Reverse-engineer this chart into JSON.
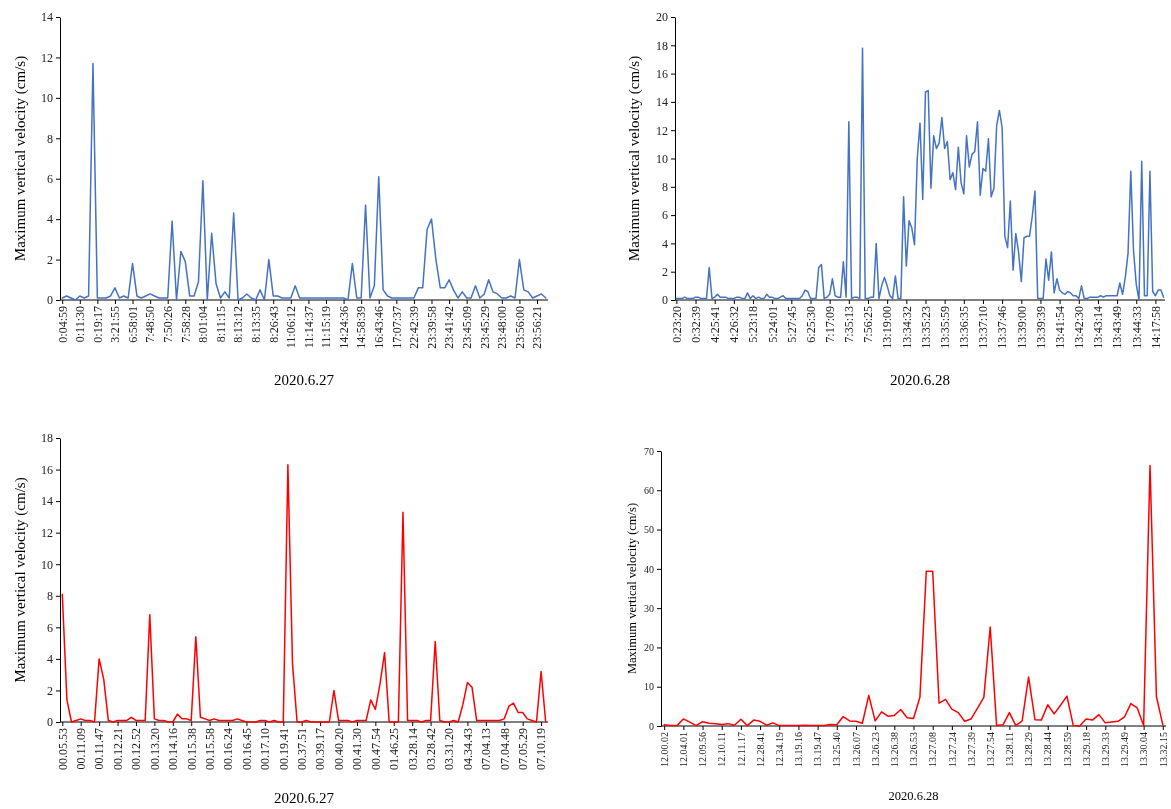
{
  "chart_data": [
    {
      "type": "line",
      "xlabel": "2020.6.27",
      "ylabel": "Maximum vertical velocity (cm/s)",
      "ylim": [
        0,
        14
      ],
      "yticks": [
        0,
        2,
        4,
        6,
        8,
        10,
        12,
        14
      ],
      "categories": [
        "0:04:59",
        null,
        null,
        null,
        "0:11:30",
        null,
        null,
        null,
        "0:19:17",
        null,
        null,
        null,
        "3:21:55",
        null,
        null,
        null,
        "6:58:01",
        null,
        null,
        null,
        "7:48:50",
        null,
        null,
        null,
        "7:50:26",
        null,
        null,
        null,
        "7:58:28",
        null,
        null,
        null,
        "8:01:04",
        null,
        null,
        null,
        "8:11:15",
        null,
        null,
        null,
        "8:13:12",
        null,
        null,
        null,
        "8:13:35",
        null,
        null,
        null,
        "8:26:43",
        null,
        null,
        null,
        "11:06:12",
        null,
        null,
        null,
        "11:14:37",
        null,
        null,
        null,
        "11:15:19",
        null,
        null,
        null,
        "14:24:36",
        null,
        null,
        null,
        "14:58:39",
        null,
        null,
        null,
        "16:43:46",
        null,
        null,
        null,
        "17:07:37",
        null,
        null,
        null,
        "22:42:39",
        null,
        null,
        null,
        "23:39:58",
        null,
        null,
        null,
        "23:41:42",
        null,
        null,
        null,
        "23:45:09",
        null,
        null,
        null,
        "23:45:29",
        null,
        null,
        null,
        "23:48:00",
        null,
        null,
        null,
        "23:56:00",
        null,
        null,
        null,
        "23:56:21",
        null,
        null
      ],
      "series": [
        {
          "color": "#4472c4",
          "values": [
            0.1,
            0.2,
            0.1,
            0,
            0.2,
            0.1,
            0.2,
            11.7,
            0.1,
            0.1,
            0.1,
            0.2,
            0.6,
            0.1,
            0.2,
            0.1,
            1.8,
            0.2,
            0.1,
            0.2,
            0.3,
            0.2,
            0.1,
            0.1,
            0.1,
            3.9,
            0,
            2.4,
            1.9,
            0.2,
            0.2,
            0.9,
            5.9,
            0,
            3.3,
            0.8,
            0.1,
            0.4,
            0.1,
            4.3,
            0,
            0.1,
            0.3,
            0.1,
            0,
            0.5,
            0,
            2,
            0.2,
            0.2,
            0.1,
            0.1,
            0.1,
            0.7,
            0.1,
            0.1,
            0.1,
            0.1,
            0.1,
            0.1,
            0.1,
            0.1,
            0.1,
            0.1,
            0.1,
            0,
            1.8,
            0.1,
            0.1,
            4.7,
            0.1,
            0.7,
            6.1,
            0.5,
            0.2,
            0.1,
            0.1,
            0.1,
            0.1,
            0.1,
            0.1,
            0.6,
            0.6,
            3.5,
            4,
            2,
            0.6,
            0.6,
            1,
            0.5,
            0.1,
            0.4,
            0.1,
            0.1,
            0.7,
            0.1,
            0.3,
            1,
            0.4,
            0.3,
            0.1,
            0.1,
            0.2,
            0.1,
            2,
            0.5,
            0.4,
            0.1,
            0.2,
            0.3,
            0.1
          ]
        }
      ]
    },
    {
      "type": "line",
      "xlabel": "2020.6.28",
      "ylabel": "Maximum vertical velocity (cm/s)",
      "ylim": [
        0,
        20
      ],
      "yticks": [
        0,
        2,
        4,
        6,
        8,
        10,
        12,
        14,
        16,
        18,
        20
      ],
      "categories": [
        "0:23:20",
        null,
        null,
        null,
        null,
        null,
        null,
        "0:32:39",
        null,
        null,
        null,
        null,
        null,
        null,
        "4:25:41",
        null,
        null,
        null,
        null,
        null,
        null,
        "4:26:32",
        null,
        null,
        null,
        null,
        null,
        null,
        "5:23:18",
        null,
        null,
        null,
        null,
        null,
        null,
        "5:24:01",
        null,
        null,
        null,
        null,
        null,
        null,
        "5:27:45",
        null,
        null,
        null,
        null,
        null,
        null,
        "6:25:30",
        null,
        null,
        null,
        null,
        null,
        null,
        "7:17:09",
        null,
        null,
        null,
        null,
        null,
        null,
        "7:35:13",
        null,
        null,
        null,
        null,
        null,
        null,
        "7:56:25",
        null,
        null,
        null,
        null,
        null,
        null,
        "13:19:00",
        null,
        null,
        null,
        null,
        null,
        null,
        "13:34:32",
        null,
        null,
        null,
        null,
        null,
        null,
        "13:35:23",
        null,
        null,
        null,
        null,
        null,
        null,
        "13:35:59",
        null,
        null,
        null,
        null,
        null,
        null,
        "13:36:35",
        null,
        null,
        null,
        null,
        null,
        null,
        "13:37:10",
        null,
        null,
        null,
        null,
        null,
        null,
        "13:37:46",
        null,
        null,
        null,
        null,
        null,
        null,
        "13:39:00",
        null,
        null,
        null,
        null,
        null,
        null,
        "13:39:39",
        null,
        null,
        null,
        null,
        null,
        null,
        "13:41:54",
        null,
        null,
        null,
        null,
        null,
        null,
        "13:42:30",
        null,
        null,
        null,
        null,
        null,
        null,
        "13:43:14",
        null,
        null,
        null,
        null,
        null,
        null,
        "13:43:49",
        null,
        null,
        null,
        null,
        null,
        null,
        "13:44:33",
        null,
        null,
        null,
        null,
        null,
        null,
        "14:17:58",
        null,
        null,
        null
      ],
      "series": [
        {
          "color": "#4472c4",
          "values": [
            0.1,
            0.1,
            0.1,
            0.2,
            0.1,
            0.1,
            0.1,
            0.2,
            0.2,
            0.1,
            0.1,
            0.1,
            2.3,
            0.1,
            0.2,
            0.4,
            0.2,
            0.2,
            0.2,
            0.1,
            0.1,
            0.1,
            0.2,
            0.2,
            0.1,
            0.1,
            0.5,
            0.1,
            0.3,
            0.1,
            0.2,
            0.1,
            0.1,
            0.4,
            0.2,
            0.2,
            0.1,
            0.1,
            0.2,
            0.3,
            0.1,
            0.1,
            0.1,
            0.1,
            0.1,
            0.1,
            0.3,
            0.7,
            0.6,
            0.1,
            0.1,
            0.1,
            2.3,
            2.5,
            0.1,
            0.2,
            0.4,
            1.5,
            0.3,
            0.2,
            0.2,
            2.7,
            0.2,
            12.6,
            0.1,
            0.2,
            0.2,
            0.1,
            17.8,
            0.1,
            0.1,
            0.2,
            0.2,
            4,
            0.1,
            1,
            1.6,
            1,
            0.3,
            0.1,
            1.7,
            0.1,
            0.1,
            7.3,
            2.4,
            5.6,
            5.1,
            3.9,
            10,
            12.5,
            7.1,
            14.7,
            14.8,
            7.9,
            11.6,
            10.7,
            11.1,
            12.9,
            10.7,
            11.2,
            8.5,
            9,
            7.8,
            10.8,
            8.3,
            7.5,
            11.6,
            9.4,
            10.3,
            10.5,
            12.6,
            7.4,
            9.3,
            9.1,
            11.4,
            7.3,
            7.9,
            12.3,
            13.4,
            12.2,
            4.5,
            3.7,
            7,
            2.1,
            4.7,
            3.4,
            1.3,
            4.4,
            4.5,
            4.5,
            5.9,
            7.7,
            0.1,
            0.1,
            0.1,
            2.9,
            1.4,
            3.4,
            0.5,
            1.5,
            0.7,
            0.5,
            0.4,
            0.6,
            0.5,
            0.3,
            0.3,
            0.1,
            1,
            0.1,
            0.1,
            0.2,
            0.2,
            0.2,
            0.2,
            0.3,
            0.2,
            0.3,
            0.3,
            0.3,
            0.3,
            0.3,
            1.2,
            0.4,
            1.6,
            3.3,
            9.1,
            3.5,
            1.1,
            0,
            9.8,
            0.3,
            0.3,
            9.1,
            0.6,
            0.3,
            0.7,
            0.7,
            0.2
          ]
        }
      ]
    },
    {
      "type": "line",
      "xlabel": "2020.6.27",
      "ylabel": "Maximum vertical velocity (cm/s)",
      "ylim": [
        0,
        18
      ],
      "yticks": [
        0,
        2,
        4,
        6,
        8,
        10,
        12,
        14,
        16,
        18
      ],
      "categories": [
        "00.05.53",
        null,
        null,
        null,
        "00.11.09",
        null,
        null,
        null,
        "00.11.47",
        null,
        null,
        null,
        "00.12.21",
        null,
        null,
        null,
        "00.12.52",
        null,
        null,
        null,
        "00.13.20",
        null,
        null,
        null,
        "00.14.16",
        null,
        null,
        null,
        "00.15.38",
        null,
        null,
        null,
        "00.15.58",
        null,
        null,
        null,
        "00.16.24",
        null,
        null,
        null,
        "00.16.45",
        null,
        null,
        null,
        "00.17.10",
        null,
        null,
        null,
        "00.19.41",
        null,
        null,
        null,
        "00.37.51",
        null,
        null,
        null,
        "00.39.17",
        null,
        null,
        null,
        "00.40.20",
        null,
        null,
        null,
        "00.41.30",
        null,
        null,
        null,
        "00.47.54",
        null,
        null,
        null,
        "01.46.25",
        null,
        null,
        null,
        "03.28.14",
        null,
        null,
        null,
        "03.28.42",
        null,
        null,
        null,
        "03.31.20",
        null,
        null,
        null,
        "04.34.43",
        null,
        null,
        null,
        "07.04.13",
        null,
        null,
        null,
        "07.04.48",
        null,
        null,
        null,
        "07.05.29",
        null,
        null,
        null,
        "07.10.19",
        null
      ],
      "series": [
        {
          "color": "#ff0000",
          "values": [
            8.1,
            1.4,
            0,
            0.1,
            0.2,
            0.1,
            0.1,
            0,
            4,
            2.7,
            0.1,
            0,
            0.1,
            0.1,
            0.1,
            0.3,
            0.1,
            0.1,
            0.1,
            6.8,
            0.2,
            0.1,
            0.1,
            0,
            0,
            0.5,
            0.2,
            0.2,
            0.1,
            5.4,
            0.3,
            0.2,
            0.1,
            0.2,
            0.1,
            0.1,
            0.1,
            0.1,
            0.2,
            0.1,
            0,
            0,
            0,
            0.1,
            0.1,
            0,
            0.1,
            0,
            0,
            16.3,
            3.7,
            0,
            0,
            0.1,
            0,
            0,
            0,
            0,
            0,
            2,
            0.1,
            0.1,
            0.1,
            0,
            0.1,
            0.1,
            0.1,
            1.4,
            0.8,
            2.4,
            4.4,
            0,
            0,
            0,
            13.3,
            0.1,
            0.1,
            0.1,
            0,
            0.1,
            0.1,
            5.1,
            0.1,
            0,
            0,
            0.1,
            0,
            1.1,
            2.5,
            2.2,
            0.1,
            0.1,
            0.1,
            0.1,
            0.1,
            0.1,
            0.2,
            1,
            1.2,
            0.6,
            0.6,
            0.2,
            0.1,
            0,
            3.2,
            0
          ]
        }
      ]
    },
    {
      "type": "line",
      "xlabel": "2020.6.28",
      "ylabel": "Maximum vertical velocity (cm/s)",
      "ylim": [
        0,
        70
      ],
      "yticks": [
        0,
        10,
        20,
        30,
        40,
        50,
        60,
        70
      ],
      "categories": [
        "12.00.02",
        null,
        null,
        "12.04.01",
        null,
        null,
        "12.09.56",
        null,
        null,
        "12.10.11",
        null,
        null,
        "12.11.17",
        null,
        null,
        "12.28.41",
        null,
        null,
        "12.34.19",
        null,
        null,
        "13.19.16",
        null,
        null,
        "13.19.47",
        null,
        null,
        "13.25.40",
        null,
        null,
        "13.26.07",
        null,
        null,
        "13.26.23",
        null,
        null,
        "13.26.38",
        null,
        null,
        "13.26.53",
        null,
        null,
        "13.27.08",
        null,
        null,
        "13.27.24",
        null,
        null,
        "13.27.39",
        null,
        null,
        "13.27.54",
        null,
        null,
        "13.28.11",
        null,
        null,
        "13.28.29",
        null,
        null,
        "13.28.44",
        null,
        null,
        "13.28.59",
        null,
        null,
        "13.29.18",
        null,
        null,
        "13.29.33",
        null,
        null,
        "13.29.49",
        null,
        null,
        "13.30.04",
        null,
        null,
        "13.32.15"
      ],
      "series": [
        {
          "color": "#ff0000",
          "values": [
            0.3,
            0.1,
            0.1,
            1.8,
            1,
            0.1,
            1.1,
            0.7,
            0.6,
            0.4,
            0.6,
            0.2,
            1.7,
            0.1,
            1.5,
            1.2,
            0.2,
            0.8,
            0.1,
            0.1,
            0.1,
            0.1,
            0.2,
            0.1,
            0.1,
            0.1,
            0.4,
            0.3,
            2.4,
            1.3,
            1.2,
            0.7,
            7.8,
            1.3,
            3.6,
            2.5,
            2.7,
            4.2,
            2.1,
            1.9,
            7.3,
            39.4,
            39.4,
            5.8,
            6.8,
            4.3,
            3.4,
            1.2,
            1.8,
            4.5,
            7.3,
            25.2,
            0.1,
            0.3,
            3.4,
            0.1,
            1.3,
            12.5,
            1.6,
            1.5,
            5.4,
            3.1,
            5.3,
            7.6,
            0.1,
            0,
            1.8,
            1.5,
            2.9,
            0.8,
            1,
            1.2,
            2.3,
            5.7,
            4.6,
            0.1,
            66.3,
            7.5,
            0.3
          ]
        }
      ]
    }
  ]
}
